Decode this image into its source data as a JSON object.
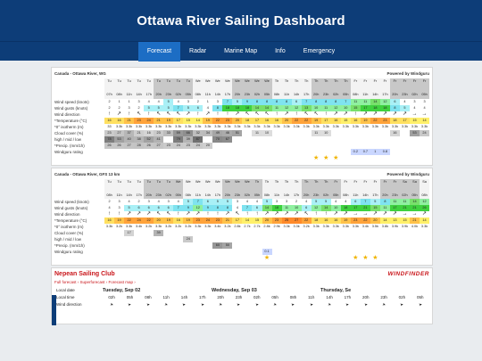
{
  "app": {
    "title": "Ottawa River Sailing Dashboard"
  },
  "nav": {
    "items": [
      {
        "label": "Forecast",
        "active": true
      },
      {
        "label": "Radar"
      },
      {
        "label": "Marine Map"
      },
      {
        "label": "Info"
      },
      {
        "label": "Emergency"
      }
    ]
  },
  "panel1": {
    "location": "Canada - Ottawa River, WG",
    "powered": "Powered by Windguru",
    "row_labels": [
      "Wind speed (knots)",
      "Wind gusts (knots)",
      "Wind direction",
      "*Temperature (°C)",
      "*0° isotherm (m)",
      "Cloud cover (%)",
      "high / mid / low",
      "*Precip. (mm/1h)",
      "Windguru rating"
    ],
    "days": [
      "Tu",
      "Tu",
      "Tu",
      "Tu",
      "Tu",
      "Tu",
      "Tu",
      "Tu",
      "Tu",
      "We",
      "We",
      "We",
      "We",
      "We",
      "We",
      "We",
      "We",
      "Th",
      "Th",
      "Th",
      "Th",
      "Th",
      "Th",
      "Th",
      "Th",
      "Fr",
      "Fr",
      "Fr",
      "Fr",
      "Fr",
      "Fr",
      "Fr",
      "Fr"
    ],
    "hours": [
      "07h",
      "08h",
      "11h",
      "14h",
      "17h",
      "20h",
      "23h",
      "02h",
      "05h",
      "08h",
      "11h",
      "14h",
      "17h",
      "20h",
      "23h",
      "02h",
      "05h",
      "08h",
      "11h",
      "14h",
      "17h",
      "20h",
      "23h",
      "02h",
      "05h",
      "08h",
      "11h",
      "14h",
      "17h",
      "20h",
      "23h",
      "02h",
      "05h"
    ],
    "speed": [
      2,
      1,
      1,
      3,
      4,
      4,
      5,
      4,
      3,
      2,
      1,
      3,
      7,
      5,
      9,
      8,
      8,
      8,
      8,
      6,
      7,
      8,
      8,
      8,
      7,
      11,
      11,
      14,
      12,
      6,
      4,
      3,
      3
    ],
    "gusts": [
      2,
      2,
      3,
      2,
      5,
      5,
      5,
      7,
      5,
      6,
      4,
      8,
      18,
      18,
      18,
      14,
      14,
      11,
      12,
      12,
      13,
      10,
      11,
      12,
      10,
      15,
      17,
      18,
      18,
      8,
      5,
      4,
      4
    ],
    "dirs": [
      "↑",
      "↗",
      "↑",
      "↖",
      "↑",
      "↖",
      "↖",
      "↖",
      "↗",
      "↑",
      "↗",
      "↑",
      "↑",
      "↗",
      "↖",
      "↖",
      "↖",
      "↑",
      "↗",
      "↑",
      "↖",
      "↖",
      "↑",
      "↗",
      "↗",
      "↑",
      "↗",
      "↗",
      "↗",
      "↗",
      "↗",
      "→",
      "→"
    ],
    "temp": [
      16,
      16,
      21,
      23,
      24,
      21,
      19,
      17,
      15,
      14,
      19,
      22,
      23,
      20,
      18,
      17,
      16,
      16,
      20,
      22,
      22,
      19,
      17,
      16,
      15,
      16,
      19,
      22,
      23,
      18,
      17,
      15,
      14
    ],
    "iso": [
      "33",
      "3.3k",
      "3.3k",
      "3.3k",
      "3.3k",
      "3.3k",
      "3.3k",
      "3.3k",
      "3.3k",
      "3.3k",
      "3.3k",
      "3.3k",
      "3.3k",
      "3.3k",
      "3.3k",
      "3.3k",
      "3.3k",
      "3.3k",
      "3.3k",
      "3.3k",
      "3.3k",
      "3.3k",
      "3.3k",
      "3.3k",
      "3.3k",
      "3.3k",
      "3.3k",
      "3.3k",
      "3.3k",
      "3.3k",
      "3.3k",
      "3.3k",
      "3.3k"
    ],
    "cloud_high": [
      23,
      27,
      37,
      21,
      16,
      23,
      33,
      59,
      66,
      32,
      34,
      49,
      46,
      51,
      "",
      11,
      10,
      "",
      "",
      "",
      "",
      11,
      10,
      "",
      "",
      "",
      "",
      "",
      "",
      16,
      "",
      53,
      24
    ],
    "cloud_mid": [
      78,
      53,
      40,
      38,
      52,
      41,
      "",
      79,
      39,
      87,
      "",
      70,
      67,
      "",
      "",
      "",
      "",
      "",
      "",
      "",
      "",
      "",
      "",
      "",
      "",
      "",
      "",
      "",
      "",
      "",
      "",
      "",
      ""
    ],
    "cloud_low": [
      26,
      26,
      27,
      28,
      26,
      27,
      23,
      24,
      23,
      24,
      20,
      "",
      "",
      "",
      "",
      "",
      "",
      "",
      "",
      "",
      "",
      "",
      "",
      "",
      "",
      "",
      "",
      "",
      "",
      "",
      "",
      "",
      ""
    ],
    "precip": [
      "",
      "",
      "",
      "",
      "",
      "",
      "",
      "",
      "",
      "",
      "",
      "",
      "",
      "",
      "",
      "",
      "",
      "",
      "",
      "",
      "",
      "",
      "",
      "",
      "",
      "0.2",
      "0.7",
      "1",
      "0.8",
      "",
      "",
      "",
      ""
    ],
    "rating": [
      "",
      "",
      "",
      "",
      "",
      "",
      "",
      "",
      "",
      "",
      "",
      "",
      "",
      "",
      "",
      "",
      "",
      "",
      "",
      "",
      "",
      "★",
      "★",
      "★",
      "",
      "",
      "",
      "",
      "",
      "",
      "",
      "",
      ""
    ]
  },
  "panel2": {
    "location": "Canada - Ottawa River, GFS 13 km",
    "powered": "Powered by Windguru",
    "row_labels": [
      "Wind speed (knots)",
      "Wind gusts (knots)",
      "Wind direction",
      "*Temperature (°C)",
      "*0° isotherm (m)",
      "Cloud cover (%)",
      "high / mid / low",
      "*Precip. (mm/1h)",
      "Windguru rating"
    ],
    "days": [
      "Tu",
      "Tu",
      "Tu",
      "Tu",
      "Tu",
      "Tu",
      "Tu",
      "We",
      "We",
      "We",
      "We",
      "We",
      "We",
      "We",
      "We",
      "Th",
      "Th",
      "Th",
      "Th",
      "Th",
      "Th",
      "Th",
      "Th",
      "Fr",
      "Fr",
      "Fr",
      "Fr",
      "Fr",
      "Fr",
      "Fr",
      "Sa",
      "Sa",
      "Sa"
    ],
    "hours": [
      "08h",
      "11h",
      "14h",
      "17h",
      "20h",
      "23h",
      "02h",
      "05h",
      "08h",
      "11h",
      "14h",
      "17h",
      "20h",
      "23h",
      "02h",
      "05h",
      "08h",
      "11h",
      "14h",
      "17h",
      "20h",
      "23h",
      "02h",
      "05h",
      "08h",
      "11h",
      "14h",
      "17h",
      "20h",
      "23h",
      "02h",
      "05h",
      "08h"
    ],
    "speed": [
      2,
      3,
      4,
      2,
      3,
      4,
      3,
      4,
      5,
      7,
      6,
      5,
      5,
      3,
      4,
      4,
      5,
      3,
      3,
      2,
      4,
      5,
      5,
      4,
      4,
      6,
      7,
      5,
      8,
      11,
      11,
      14,
      12
    ],
    "gusts": [
      4,
      3,
      5,
      6,
      6,
      6,
      6,
      7,
      9,
      12,
      9,
      8,
      8,
      4,
      7,
      6,
      14,
      18,
      11,
      10,
      6,
      12,
      14,
      10,
      18,
      17,
      21,
      15,
      11,
      17,
      21,
      21,
      26
    ],
    "dirs": [
      "↑",
      "↑",
      "↗",
      "↗",
      "↗",
      "↖",
      "↖",
      "↑",
      "↗",
      "↗",
      "↑",
      "↑",
      "↗",
      "↖",
      "↑",
      "↑",
      "↗",
      "↗",
      "↗",
      "↗",
      "↖",
      "↑",
      "↑",
      "↗",
      "↗",
      "→",
      "→",
      "↗",
      "↗",
      "↗",
      "→",
      "→",
      "↗"
    ],
    "temp": [
      16,
      19,
      22,
      24,
      22,
      20,
      19,
      16,
      19,
      23,
      24,
      23,
      21,
      17,
      14,
      15,
      20,
      23,
      25,
      27,
      22,
      18,
      16,
      16,
      19,
      23,
      22,
      20,
      14,
      13,
      15,
      21,
      14
    ],
    "iso": [
      "3.3k",
      "3.2k",
      "3.3k",
      "3.4k",
      "3.2k",
      "3.3k",
      "3.2k",
      "3.2k",
      "3.2k",
      "3.3k",
      "3.3k",
      "3.4k",
      "3.2k",
      "2.8k",
      "2.7k",
      "2.7k",
      "2.8k",
      "2.9k",
      "3.3k",
      "3.3k",
      "3.2k",
      "3.3k",
      "3.3k",
      "3.3k",
      "3.3k",
      "3.3k",
      "3.4k",
      "3.5k",
      "3.8k",
      "3.9k",
      "3.9k",
      "4.0k",
      "3.3k"
    ],
    "cloud_high": [
      "",
      "",
      "17",
      "",
      "",
      "39",
      "",
      "",
      "",
      "",
      "",
      "",
      "",
      "",
      "",
      "",
      "",
      "",
      "",
      "",
      "",
      "",
      "",
      "",
      "",
      "",
      "",
      "",
      "",
      "",
      "",
      "",
      ""
    ],
    "cloud_mid": [
      "",
      "",
      "",
      "",
      "",
      "",
      "",
      "",
      "24",
      "",
      "",
      "",
      "",
      "",
      "",
      "",
      "",
      "",
      "",
      "",
      "",
      "",
      "",
      "",
      "",
      "",
      "",
      "",
      "",
      "",
      "",
      "",
      ""
    ],
    "cloud_low": [
      "",
      "",
      "",
      "",
      "",
      "",
      "",
      "",
      "",
      "",
      "",
      "60",
      "50",
      "",
      "",
      "",
      "",
      "",
      "",
      "",
      "",
      "",
      "",
      "",
      "",
      "",
      "",
      "",
      "",
      "",
      "",
      "",
      ""
    ],
    "precip": [
      "",
      "",
      "",
      "",
      "",
      "",
      "",
      "",
      "",
      "",
      "",
      "",
      "",
      "",
      "",
      "",
      "0.1",
      "",
      "",
      "",
      "",
      "",
      "",
      "",
      "",
      "",
      "",
      "",
      "",
      "",
      "",
      "",
      ""
    ],
    "rating": [
      "",
      "",
      "",
      "",
      "",
      "",
      "",
      "",
      "",
      "",
      "",
      "",
      "",
      "",
      "",
      "",
      "★",
      "",
      "",
      "",
      "",
      "",
      "",
      "",
      "",
      "★",
      "★",
      "★",
      "",
      "",
      "",
      "",
      ""
    ]
  },
  "windfinder": {
    "title": "Nepean Sailing Club",
    "logo": "WINDFINDER",
    "links": "Full forecast  ›  Superforecast  ›  Forecast map  ›",
    "days": [
      "Tuesday, Sep 02",
      "Wednesday, Sep 03",
      "Thursday, Se"
    ],
    "local_date_label": "Local date",
    "local_time_label": "Local time",
    "wind_dir_label": "Wind direction",
    "times": [
      "02h",
      "05h",
      "08h",
      "11h",
      "14h",
      "17h",
      "20h",
      "23h",
      "02h",
      "05h",
      "08h",
      "11h",
      "14h",
      "17h",
      "20h",
      "23h",
      "02h",
      "05h"
    ],
    "dirs": [
      "➤",
      "➤",
      "➤",
      "➤",
      "➤",
      "➤",
      "➤",
      "➤",
      "➤",
      "➤",
      "➤",
      "➤",
      "➤",
      "➤",
      "➤",
      "➤",
      "➤",
      "➤"
    ]
  }
}
